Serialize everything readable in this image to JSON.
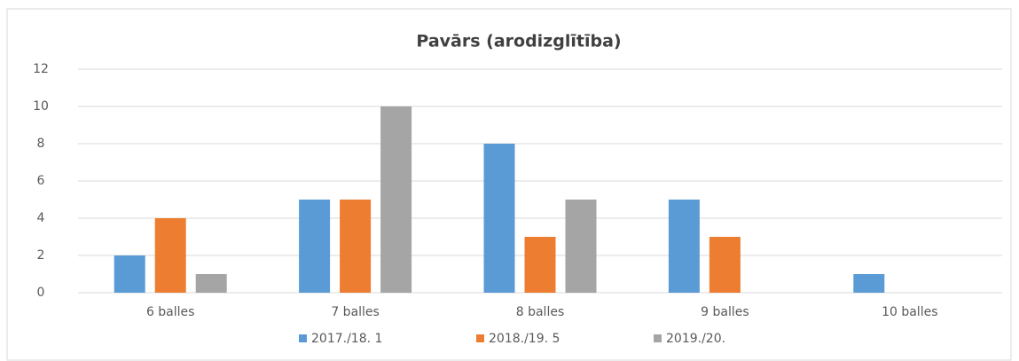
{
  "chart_data": {
    "type": "bar",
    "title": "Pavārs  (arodizglītība)",
    "categories": [
      "6 balles",
      "7 balles",
      "8 balles",
      "9 balles",
      "10 balles"
    ],
    "series": [
      {
        "name": "2017./18. 1",
        "color": "#5b9bd5",
        "values": [
          2,
          5,
          8,
          5,
          1
        ]
      },
      {
        "name": "2018./19. 5",
        "color": "#ed7d31",
        "values": [
          4,
          5,
          3,
          3,
          0
        ]
      },
      {
        "name": "2019./20.",
        "color": "#a5a5a5",
        "values": [
          1,
          10,
          5,
          0,
          0
        ]
      }
    ],
    "ylim": [
      0,
      12
    ],
    "yticks": [
      0,
      2,
      4,
      6,
      8,
      10,
      12
    ],
    "grid": true,
    "legend": "bottom"
  }
}
